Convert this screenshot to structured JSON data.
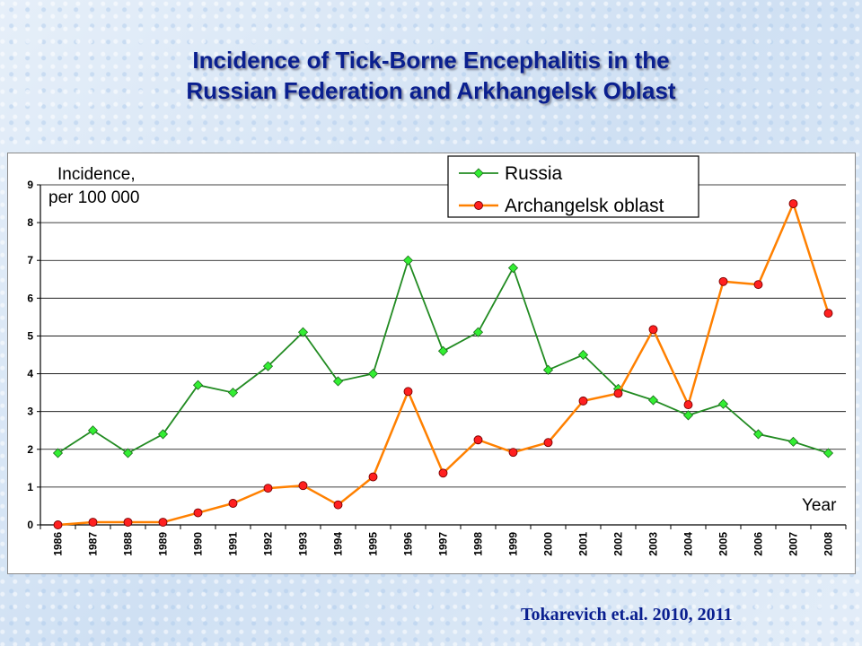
{
  "slide": {
    "title_line1": "Incidence of Tick-Borne Encephalitis in the",
    "title_line2": "Russian Federation and Arkhangelsk Oblast",
    "citation": "Tokarevich et.al. 2010, 2011"
  },
  "chart_data": {
    "type": "line",
    "title": "Incidence of Tick-Borne Encephalitis in the Russian Federation and Arkhangelsk Oblast",
    "ylabel_line1": "Incidence,",
    "ylabel_line2": "per 100 000",
    "xlabel": "Year",
    "ylim": [
      0,
      9
    ],
    "yticks": [
      0,
      1,
      2,
      3,
      4,
      5,
      6,
      7,
      8,
      9
    ],
    "grid": "horizontal",
    "legend_position": "top",
    "categories": [
      "1986",
      "1987",
      "1988",
      "1989",
      "1990",
      "1991",
      "1992",
      "1993",
      "1994",
      "1995",
      "1996",
      "1997",
      "1998",
      "1999",
      "2000",
      "2001",
      "2002",
      "2003",
      "2004",
      "2005",
      "2006",
      "2007",
      "2008"
    ],
    "series": [
      {
        "name": "Russia",
        "color": "#228B22",
        "marker_color": "#33ee33",
        "marker": "diamond",
        "values": [
          1.9,
          2.5,
          1.9,
          2.4,
          3.7,
          3.5,
          4.2,
          5.1,
          3.8,
          4.0,
          7.0,
          4.6,
          5.1,
          6.8,
          4.1,
          4.5,
          3.6,
          3.3,
          2.9,
          3.2,
          2.4,
          2.2,
          1.9
        ]
      },
      {
        "name": "Archangelsk oblast",
        "color": "#ff8000",
        "marker_color": "#ff2020",
        "marker": "circle",
        "values": [
          0.0,
          0.07,
          0.07,
          0.07,
          0.32,
          0.57,
          0.97,
          1.04,
          0.53,
          1.27,
          3.53,
          1.37,
          2.25,
          1.92,
          2.18,
          3.28,
          3.48,
          5.17,
          3.18,
          6.44,
          6.36,
          8.5,
          5.6
        ]
      }
    ]
  }
}
